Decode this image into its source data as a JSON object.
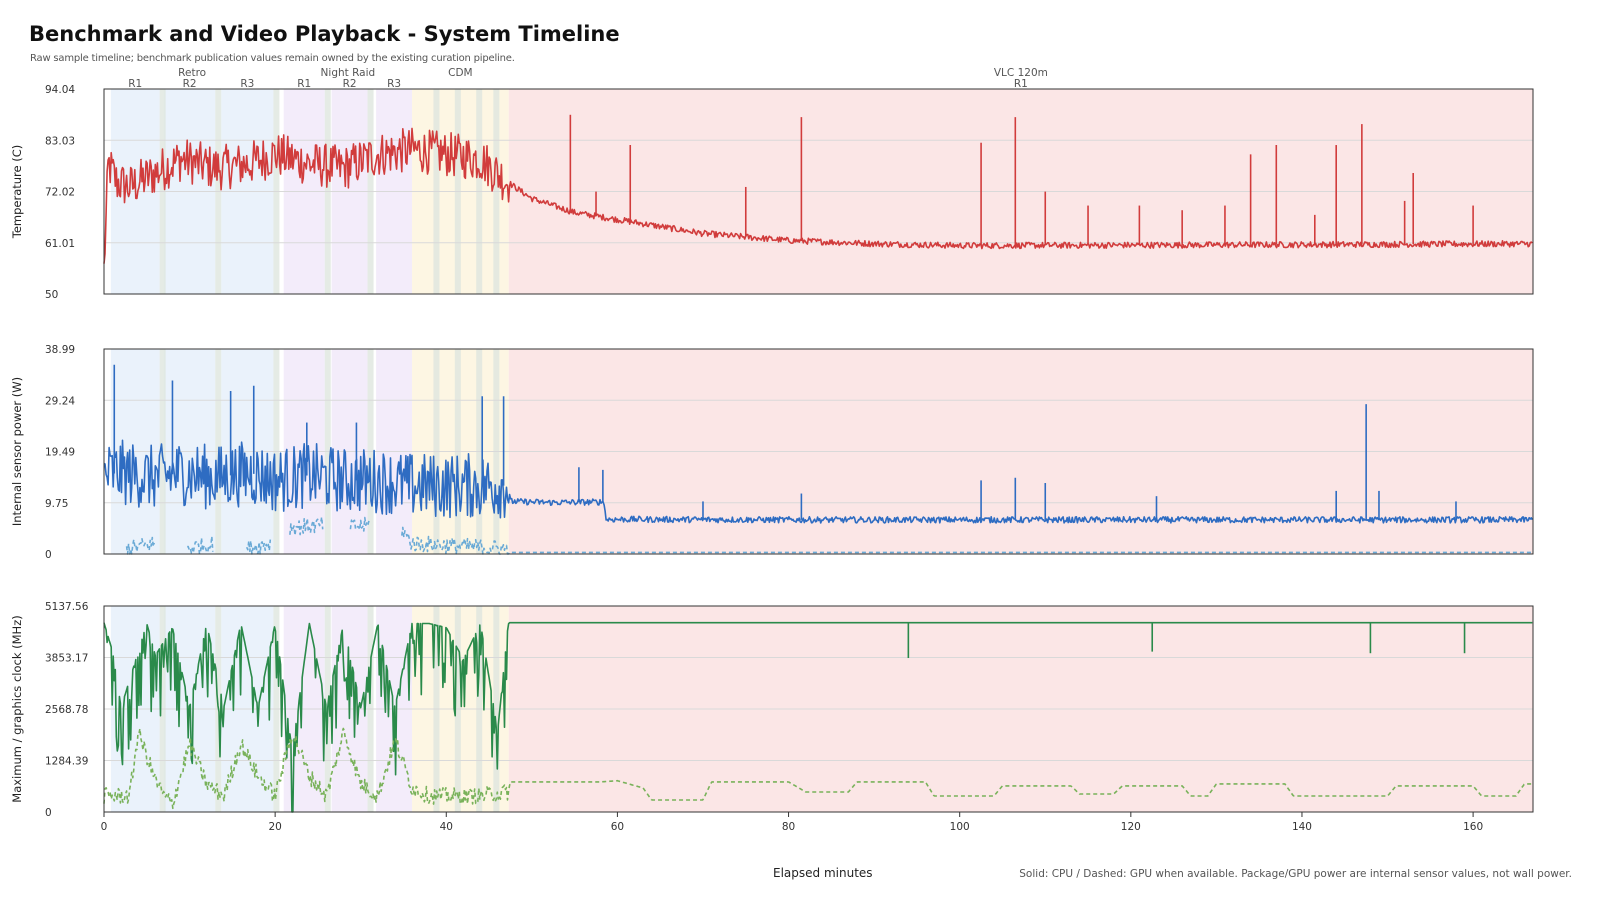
{
  "header": {
    "title": "Benchmark and Video Playback - System Timeline",
    "subtitle": "Raw sample timeline; benchmark publication values remain owned by the existing curation pipeline.",
    "footnote": "Solid: CPU / Dashed: GPU when available. Package/GPU power are internal sensor values, not wall power."
  },
  "colors": {
    "temp": "#d13c3c",
    "power_cpu": "#2e6cc2",
    "power_gpu": "#6aaad6",
    "clock_cpu": "#2a8a4a",
    "clock_gpu": "#79b25a",
    "grid": "#d9d9d9",
    "axis": "#333333",
    "retro_bg": "#eaf2fb",
    "nightraid_bg": "#f3ecfa",
    "cdm_bg": "#fdf6e3",
    "vlc_bg": "#fbe6e6",
    "gap_bg": "#dfe6df"
  },
  "chart_data": {
    "type": "line",
    "xlabel": "Elapsed minutes",
    "xlim": [
      0,
      167
    ],
    "x_ticks": [
      0,
      20,
      40,
      60,
      80,
      100,
      120,
      140,
      160
    ],
    "segments": [
      {
        "group": "Retro",
        "label": "R1",
        "start": 0.8,
        "end": 6.5
      },
      {
        "group": "Retro",
        "label": "R2",
        "start": 7.0,
        "end": 13.0
      },
      {
        "group": "Retro",
        "label": "R3",
        "start": 13.7,
        "end": 19.8
      },
      {
        "group": "Night Raid",
        "label": "R1",
        "start": 21.0,
        "end": 25.8
      },
      {
        "group": "Night Raid",
        "label": "R2",
        "start": 26.6,
        "end": 30.8
      },
      {
        "group": "Night Raid",
        "label": "R3",
        "start": 31.8,
        "end": 36.0
      },
      {
        "group": "CDM",
        "label": "",
        "start": 36.0,
        "end": 47.3
      },
      {
        "group": "VLC 120m",
        "label": "R1",
        "start": 47.3,
        "end": 167.0
      }
    ],
    "panels": [
      {
        "ylabel": "Temperature (C)",
        "ylim": [
          50,
          94.04
        ],
        "yticks": [
          "50",
          "61.01",
          "72.02",
          "83.03",
          "94.04"
        ],
        "series": [
          {
            "role": "cpu",
            "style": "solid",
            "anchors_x": [
              0.0,
              0.5,
              1.5,
              3,
              6,
              9,
              13,
              17,
              20,
              24,
              28,
              32,
              36,
              40,
              44,
              47.2,
              50,
              55,
              60,
              65,
              70,
              80,
              90,
              100,
              120,
              140,
              167
            ],
            "anchors_y": [
              55,
              78,
              74,
              73,
              76,
              79,
              77,
              78,
              80,
              78,
              77,
              80,
              81,
              80,
              79,
              74,
              70.5,
              67.5,
              66,
              64.5,
              63,
              61.5,
              60.8,
              60.4,
              60.5,
              60.6,
              60.8
            ],
            "spikes": [
              [
                54.5,
                88.5
              ],
              [
                57.5,
                72
              ],
              [
                61.5,
                82
              ],
              [
                75,
                73
              ],
              [
                81.5,
                88
              ],
              [
                102.5,
                82.5
              ],
              [
                106.5,
                88
              ],
              [
                110,
                72
              ],
              [
                115,
                69
              ],
              [
                121,
                69
              ],
              [
                126,
                68
              ],
              [
                131,
                69
              ],
              [
                134,
                80
              ],
              [
                137,
                82
              ],
              [
                141.5,
                67
              ],
              [
                144,
                82
              ],
              [
                147,
                86.5
              ],
              [
                152,
                70
              ],
              [
                153,
                76
              ],
              [
                160,
                69
              ]
            ]
          }
        ]
      },
      {
        "ylabel": "Internal sensor power (W)",
        "ylim": [
          0,
          38.99
        ],
        "yticks": [
          "0",
          "9.75",
          "19.49",
          "29.24",
          "38.99"
        ],
        "series": [
          {
            "role": "cpu",
            "style": "solid",
            "anchors_x": [
              0.0,
              2,
              6,
              9,
              13,
              17,
              20,
              24,
              28,
              32,
              36,
              40,
              44,
              47.2,
              47.5,
              52,
              58.5,
              58.6,
              80,
              120,
              167
            ],
            "anchors_y": [
              15,
              15.5,
              14.5,
              15.5,
              14.5,
              15.5,
              14,
              15,
              14,
              14,
              13,
              13,
              13,
              13,
              10,
              9.8,
              9.9,
              6.6,
              6.5,
              6.5,
              6.5
            ],
            "spikes": [
              [
                1.2,
                36
              ],
              [
                8,
                33
              ],
              [
                14.8,
                31
              ],
              [
                17.5,
                32
              ],
              [
                23.7,
                25
              ],
              [
                29.5,
                25
              ],
              [
                44.2,
                30
              ],
              [
                46.7,
                30
              ],
              [
                55.5,
                16.5
              ],
              [
                58.3,
                16
              ],
              [
                70,
                10
              ],
              [
                81.5,
                11.5
              ],
              [
                102.5,
                14
              ],
              [
                106.5,
                14.5
              ],
              [
                110,
                13.5
              ],
              [
                123,
                11
              ],
              [
                144,
                12
              ],
              [
                147.5,
                28.5
              ],
              [
                149,
                12
              ],
              [
                158,
                10
              ]
            ]
          },
          {
            "role": "gpu",
            "style": "dashed",
            "anchors_x": [
              0,
              2.5,
              2.6,
              6,
              6.1,
              9.5,
              9.6,
              12.8,
              12.9,
              16.5,
              16.6,
              19.5,
              19.6,
              21.6,
              21.7,
              25.6,
              25.7,
              28.6,
              28.7,
              31,
              31.1,
              34.6,
              34.7,
              36,
              47.2,
              47.3,
              167
            ],
            "anchors_y": [
              null,
              null,
              1,
              2,
              null,
              null,
              1,
              2,
              null,
              null,
              1,
              2,
              null,
              null,
              5,
              5.5,
              null,
              null,
              5,
              5.5,
              null,
              null,
              5,
              2,
              1,
              0.3,
              0.3
            ]
          }
        ]
      },
      {
        "ylabel": "Maximum / graphics clock (MHz)",
        "ylim": [
          0,
          5137.56
        ],
        "yticks": [
          "0",
          "1284.39",
          "2568.78",
          "3853.17",
          "5137.56"
        ],
        "series": [
          {
            "role": "cpu",
            "style": "solid",
            "anchors_x": [
              0.0,
              1,
              2,
              5,
              6,
              8,
              10,
              12,
              14,
              16,
              18,
              20,
              22,
              24,
              26,
              28,
              30,
              32,
              34,
              36,
              38,
              40,
              42,
              44,
              46,
              47.2,
              47.3,
              167
            ],
            "anchors_y": [
              4720,
              4000,
              2600,
              4700,
              3900,
              4600,
              2600,
              4700,
              2600,
              4700,
              2600,
              4700,
              1500,
              4700,
              2600,
              4700,
              2600,
              4700,
              2600,
              4700,
              4700,
              4600,
              3800,
              4700,
              2000,
              4600,
              4720,
              4720
            ],
            "dips": [
              [
                94,
                3840
              ],
              [
                122.5,
                4000
              ],
              [
                148,
                3960
              ],
              [
                159,
                3960
              ]
            ]
          },
          {
            "role": "gpu",
            "style": "dashed",
            "anchors_x": [
              0,
              3,
              4,
              6,
              7,
              8,
              10,
              12,
              14,
              16,
              18,
              20,
              22,
              24,
              26,
              28,
              30,
              32,
              34,
              36,
              38,
              40,
              44,
              47.2,
              47.5,
              58,
              60,
              63,
              64,
              70,
              71,
              80,
              82,
              87,
              88,
              96,
              97,
              104,
              105,
              113,
              114,
              118,
              119,
              126,
              127,
              129,
              130,
              138,
              139,
              150,
              151,
              160,
              161,
              165,
              166,
              167
            ],
            "anchors_y": [
              400,
              400,
              2000,
              800,
              400,
              200,
              1700,
              700,
              400,
              1700,
              900,
              400,
              2000,
              900,
              400,
              2000,
              700,
              400,
              1800,
              600,
              400,
              400,
              400,
              500,
              750,
              750,
              780,
              600,
              300,
              300,
              750,
              750,
              500,
              500,
              750,
              750,
              400,
              400,
              650,
              650,
              450,
              450,
              650,
              650,
              400,
              400,
              700,
              700,
              400,
              400,
              650,
              650,
              400,
              400,
              700,
              700
            ]
          }
        ]
      }
    ]
  }
}
